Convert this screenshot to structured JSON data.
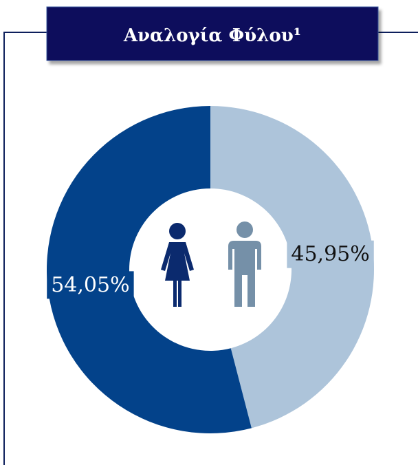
{
  "chart_data": {
    "type": "donut",
    "title": "Αναλογία Φύλου¹",
    "values": [
      45.95,
      54.05
    ],
    "value_labels": [
      "45,95%",
      "54,05%"
    ],
    "colors": [
      "#adc4da",
      "#03428a"
    ],
    "label_text_colors": [
      "#111111",
      "#ffffff"
    ]
  }
}
